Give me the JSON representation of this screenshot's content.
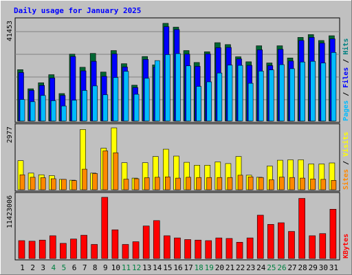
{
  "chart_data": {
    "type": "bar",
    "title": "Daily usage for January 2025",
    "categories": [
      "1",
      "2",
      "3",
      "4",
      "5",
      "6",
      "7",
      "8",
      "9",
      "10",
      "11",
      "12",
      "13",
      "14",
      "15",
      "16",
      "17",
      "18",
      "19",
      "20",
      "21",
      "22",
      "23",
      "24",
      "25",
      "26",
      "27",
      "28",
      "29",
      "30",
      "31"
    ],
    "weekend_days": [
      "4",
      "5",
      "11",
      "12",
      "18",
      "19",
      "25",
      "26"
    ],
    "colors": {
      "background": "#c0c0c0",
      "title": "#0000ff",
      "hits": "#006633",
      "files": "#0000ff",
      "pages": "#00bbff",
      "visits": "#ffff00",
      "sites": "#ff8800",
      "kbytes": "#ff0000",
      "weekend_label": "#008040",
      "weekday_label": "#000000"
    },
    "panels": [
      {
        "id": "top",
        "max_label": "41453",
        "ylim": [
          0,
          41453
        ],
        "legend": [
          {
            "label": "Pages",
            "color": "#00bbff"
          },
          {
            "label": " / ",
            "color": "#000000"
          },
          {
            "label": "Files",
            "color": "#0000ff"
          },
          {
            "label": " / ",
            "color": "#000000"
          },
          {
            "label": "Hits",
            "color": "#008080"
          }
        ],
        "series": [
          {
            "name": "Hits",
            "values": [
              21500,
              13500,
              16000,
              19400,
              11500,
              28000,
              22500,
              28300,
              20500,
              29500,
              24000,
              15000,
              27000,
              23500,
              40900,
              39300,
              29500,
              24500,
              29000,
              32800,
              32000,
              26900,
              24800,
              31500,
              24300,
              31500,
              26400,
              35000,
              36200,
              33700,
              35700
            ]
          },
          {
            "name": "Files",
            "values": [
              20300,
              12800,
              14900,
              18000,
              10700,
              27000,
              21000,
              25000,
              18700,
              28100,
              22600,
              14000,
              25800,
              22600,
              39500,
              38300,
              28000,
              22900,
              28100,
              30700,
              30800,
              26000,
              23300,
              29800,
              23200,
              30000,
              25100,
              33700,
              35000,
              32600,
              34400
            ]
          },
          {
            "name": "Pages",
            "values": [
              9000,
              8100,
              10700,
              8500,
              6300,
              8700,
              12800,
              14700,
              11000,
              18200,
              20800,
              11200,
              17900,
              25300,
              27800,
              28200,
              23100,
              14500,
              16400,
              20100,
              23400,
              23300,
              15800,
              20900,
              21400,
              23600,
              21900,
              24700,
              25000,
              24300,
              28700
            ]
          }
        ]
      },
      {
        "id": "middle",
        "max_label": "2977",
        "ylim": [
          0,
          2977
        ],
        "legend": [
          {
            "label": "Sites",
            "color": "#ff8800"
          },
          {
            "label": " / ",
            "color": "#000000"
          },
          {
            "label": "Visits",
            "color": "#ffff00"
          }
        ],
        "series": [
          {
            "name": "Visits",
            "values": [
              1400,
              800,
              720,
              680,
              500,
              460,
              2900,
              800,
              2000,
              2977,
              1300,
              560,
              1300,
              1600,
              1950,
              1620,
              1320,
              1180,
              1180,
              1340,
              1260,
              1600,
              700,
              600,
              1140,
              1420,
              1440,
              1440,
              1240,
              1240,
              1290
            ]
          },
          {
            "name": "Sites",
            "values": [
              720,
              600,
              580,
              530,
              500,
              440,
              990,
              780,
              1870,
              1780,
              510,
              530,
              580,
              600,
              620,
              560,
              600,
              590,
              590,
              590,
              590,
              700,
              620,
              590,
              480,
              610,
              590,
              560,
              520,
              500,
              450
            ]
          }
        ]
      },
      {
        "id": "bottom",
        "max_label": "11423006",
        "ylim": [
          0,
          11423006
        ],
        "legend": [
          {
            "label": "KBytes",
            "color": "#ff0000"
          }
        ],
        "series": [
          {
            "name": "KBytes",
            "values": [
              3300000,
              3200000,
              3400000,
              4200000,
              2800000,
              3600000,
              4300000,
              2600000,
              11300000,
              5300000,
              2600000,
              3100000,
              6000000,
              7000000,
              4200000,
              3800000,
              3500000,
              3400000,
              3300000,
              3800000,
              3700000,
              3000000,
              3800000,
              8000000,
              6300000,
              6600000,
              5000000,
              11100000,
              4200000,
              4600000,
              9100000
            ]
          }
        ]
      }
    ]
  }
}
